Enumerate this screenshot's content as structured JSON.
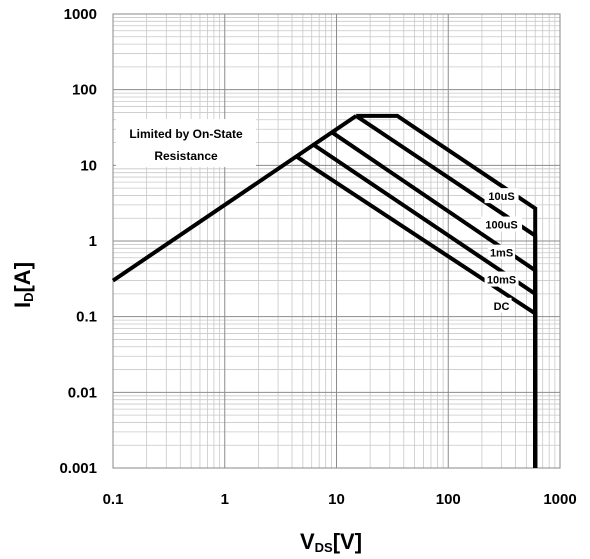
{
  "chart_data": {
    "type": "line",
    "title": "",
    "x_scale": "log",
    "y_scale": "log",
    "xlim": [
      0.1,
      1000
    ],
    "ylim": [
      0.001,
      1000
    ],
    "grid": true,
    "xlabel": {
      "main": "V",
      "sub": "DS",
      "unit": "[V]"
    },
    "ylabel": {
      "main": "I",
      "sub": "D",
      "unit": "[A]"
    },
    "x_ticks": [
      0.1,
      1,
      10,
      100,
      1000
    ],
    "x_tick_labels": [
      "0.1",
      "1",
      "10",
      "100",
      "1000"
    ],
    "y_ticks": [
      0.001,
      0.01,
      0.1,
      1,
      10,
      100,
      1000
    ],
    "y_tick_labels": [
      "0.001",
      "0.01",
      "0.1",
      "1",
      "10",
      "100",
      "1000"
    ],
    "annotation": {
      "lines": [
        "Limited by On-State",
        "Resistance"
      ]
    },
    "limit_line": {
      "x": [
        0.1,
        15
      ],
      "y": [
        0.3,
        45
      ]
    },
    "series": [
      {
        "name": "10uS",
        "x": [
          15,
          35,
          600,
          600
        ],
        "y": [
          45,
          45,
          2.7,
          0.001
        ]
      },
      {
        "name": "100uS",
        "x": [
          15,
          600,
          600
        ],
        "y": [
          45,
          1.18,
          0.001
        ]
      },
      {
        "name": "1mS",
        "x": [
          9.2,
          600,
          600
        ],
        "y": [
          27,
          0.41,
          0.001
        ]
      },
      {
        "name": "10mS",
        "x": [
          6.3,
          600,
          600
        ],
        "y": [
          18.5,
          0.2,
          0.001
        ]
      },
      {
        "name": "DC",
        "x": [
          4.4,
          600,
          600
        ],
        "y": [
          13,
          0.11,
          0.001
        ]
      }
    ],
    "series_label_pos": [
      {
        "name": "10uS",
        "x": 300,
        "y": 3.8
      },
      {
        "name": "100uS",
        "x": 300,
        "y": 1.6
      },
      {
        "name": "1mS",
        "x": 300,
        "y": 0.68
      },
      {
        "name": "10mS",
        "x": 300,
        "y": 0.3
      },
      {
        "name": "DC",
        "x": 300,
        "y": 0.135
      }
    ]
  }
}
